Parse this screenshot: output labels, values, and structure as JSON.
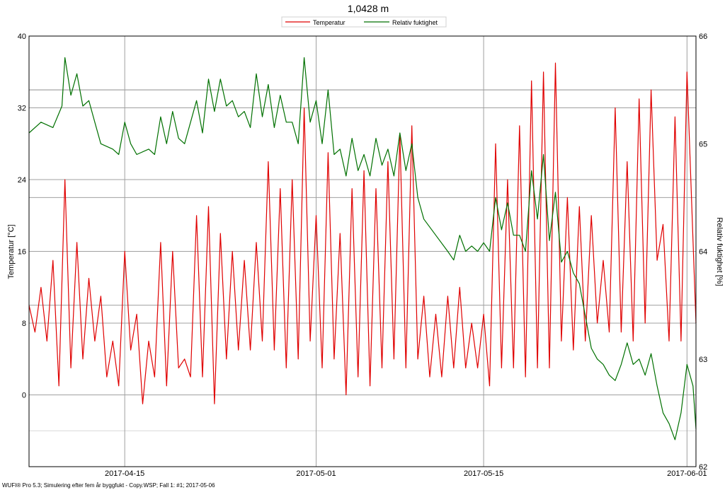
{
  "chart_data": {
    "type": "line",
    "title": "1,0428 m",
    "ylabel_left": "Temperatur [°C]",
    "ylabel_right": "Relativ fuktighet [%]",
    "ylim_left": [
      -8,
      40
    ],
    "yticks_left": [
      "40",
      "32",
      "24",
      "16",
      "8",
      "0"
    ],
    "ylim_right": [
      62,
      66
    ],
    "yticks_right": [
      "66",
      "65",
      "64",
      "63",
      "62"
    ],
    "xlim": [
      "2017-04-07",
      "2017-06-01T18:00"
    ],
    "xticks": [
      "2017-04-15",
      "2017-05-01",
      "2017-05-15",
      "2017-06-01"
    ],
    "grid": true,
    "legend": {
      "placement": "top-center",
      "entries": [
        "Temperatur",
        "Relativ fuktighet"
      ]
    },
    "footer": "WUFI® Pro 5.3; Simulering efter fem år  byggfukt - Copy.WSP; Fall 1: #1; 2017-05-06",
    "series": [
      {
        "name": "Temperatur",
        "axis": "left",
        "color": "#e00000",
        "points": [
          [
            "2017-04-07T00:00",
            10
          ],
          [
            "2017-04-07T12:00",
            7
          ],
          [
            "2017-04-08T00:00",
            12
          ],
          [
            "2017-04-08T12:00",
            6
          ],
          [
            "2017-04-09T00:00",
            15
          ],
          [
            "2017-04-09T12:00",
            1
          ],
          [
            "2017-04-10T00:00",
            24
          ],
          [
            "2017-04-10T12:00",
            3
          ],
          [
            "2017-04-11T00:00",
            17
          ],
          [
            "2017-04-11T12:00",
            4
          ],
          [
            "2017-04-12T00:00",
            13
          ],
          [
            "2017-04-12T12:00",
            6
          ],
          [
            "2017-04-13T00:00",
            11
          ],
          [
            "2017-04-13T12:00",
            2
          ],
          [
            "2017-04-14T00:00",
            6
          ],
          [
            "2017-04-14T12:00",
            1
          ],
          [
            "2017-04-15T00:00",
            16
          ],
          [
            "2017-04-15T12:00",
            5
          ],
          [
            "2017-04-16T00:00",
            9
          ],
          [
            "2017-04-16T12:00",
            -1
          ],
          [
            "2017-04-17T00:00",
            6
          ],
          [
            "2017-04-17T12:00",
            2
          ],
          [
            "2017-04-18T00:00",
            17
          ],
          [
            "2017-04-18T12:00",
            1
          ],
          [
            "2017-04-19T00:00",
            16
          ],
          [
            "2017-04-19T12:00",
            3
          ],
          [
            "2017-04-20T00:00",
            4
          ],
          [
            "2017-04-20T12:00",
            2
          ],
          [
            "2017-04-21T00:00",
            20
          ],
          [
            "2017-04-21T12:00",
            2
          ],
          [
            "2017-04-22T00:00",
            21
          ],
          [
            "2017-04-22T12:00",
            -1
          ],
          [
            "2017-04-23T00:00",
            18
          ],
          [
            "2017-04-23T12:00",
            4
          ],
          [
            "2017-04-24T00:00",
            16
          ],
          [
            "2017-04-24T12:00",
            5
          ],
          [
            "2017-04-25T00:00",
            15
          ],
          [
            "2017-04-25T12:00",
            5
          ],
          [
            "2017-04-26T00:00",
            17
          ],
          [
            "2017-04-26T12:00",
            6
          ],
          [
            "2017-04-27T00:00",
            26
          ],
          [
            "2017-04-27T12:00",
            5
          ],
          [
            "2017-04-28T00:00",
            23
          ],
          [
            "2017-04-28T12:00",
            3
          ],
          [
            "2017-04-29T00:00",
            24
          ],
          [
            "2017-04-29T12:00",
            4
          ],
          [
            "2017-04-30T00:00",
            32
          ],
          [
            "2017-04-30T12:00",
            6
          ],
          [
            "2017-05-01T00:00",
            20
          ],
          [
            "2017-05-01T12:00",
            3
          ],
          [
            "2017-05-02T00:00",
            27
          ],
          [
            "2017-05-02T12:00",
            4
          ],
          [
            "2017-05-03T00:00",
            18
          ],
          [
            "2017-05-03T12:00",
            0
          ],
          [
            "2017-05-04T00:00",
            23
          ],
          [
            "2017-05-04T12:00",
            2
          ],
          [
            "2017-05-05T00:00",
            25
          ],
          [
            "2017-05-05T12:00",
            1
          ],
          [
            "2017-05-06T00:00",
            23
          ],
          [
            "2017-05-06T12:00",
            3
          ],
          [
            "2017-05-07T00:00",
            26
          ],
          [
            "2017-05-07T12:00",
            4
          ],
          [
            "2017-05-08T00:00",
            29
          ],
          [
            "2017-05-08T12:00",
            3
          ],
          [
            "2017-05-09T00:00",
            30
          ],
          [
            "2017-05-09T12:00",
            4
          ],
          [
            "2017-05-10T00:00",
            11
          ],
          [
            "2017-05-10T12:00",
            2
          ],
          [
            "2017-05-11T00:00",
            9
          ],
          [
            "2017-05-11T12:00",
            2
          ],
          [
            "2017-05-12T00:00",
            11
          ],
          [
            "2017-05-12T12:00",
            3
          ],
          [
            "2017-05-13T00:00",
            12
          ],
          [
            "2017-05-13T12:00",
            3
          ],
          [
            "2017-05-14T00:00",
            8
          ],
          [
            "2017-05-14T12:00",
            3
          ],
          [
            "2017-05-15T00:00",
            9
          ],
          [
            "2017-05-15T12:00",
            1
          ],
          [
            "2017-05-16T00:00",
            28
          ],
          [
            "2017-05-16T12:00",
            3
          ],
          [
            "2017-05-17T00:00",
            24
          ],
          [
            "2017-05-17T12:00",
            3
          ],
          [
            "2017-05-18T00:00",
            30
          ],
          [
            "2017-05-18T12:00",
            2
          ],
          [
            "2017-05-19T00:00",
            35
          ],
          [
            "2017-05-19T12:00",
            3
          ],
          [
            "2017-05-20T00:00",
            36
          ],
          [
            "2017-05-20T12:00",
            3
          ],
          [
            "2017-05-21T00:00",
            37
          ],
          [
            "2017-05-21T12:00",
            6
          ],
          [
            "2017-05-22T00:00",
            22
          ],
          [
            "2017-05-22T12:00",
            5
          ],
          [
            "2017-05-23T00:00",
            21
          ],
          [
            "2017-05-23T12:00",
            6
          ],
          [
            "2017-05-24T00:00",
            20
          ],
          [
            "2017-05-24T12:00",
            8
          ],
          [
            "2017-05-25T00:00",
            15
          ],
          [
            "2017-05-25T12:00",
            7
          ],
          [
            "2017-05-26T00:00",
            32
          ],
          [
            "2017-05-26T12:00",
            7
          ],
          [
            "2017-05-27T00:00",
            26
          ],
          [
            "2017-05-27T12:00",
            6
          ],
          [
            "2017-05-28T00:00",
            33
          ],
          [
            "2017-05-28T12:00",
            8
          ],
          [
            "2017-05-29T00:00",
            34
          ],
          [
            "2017-05-29T12:00",
            15
          ],
          [
            "2017-05-30T00:00",
            19
          ],
          [
            "2017-05-30T12:00",
            6
          ],
          [
            "2017-05-31T00:00",
            31
          ],
          [
            "2017-05-31T12:00",
            6
          ],
          [
            "2017-06-01T00:00",
            36
          ],
          [
            "2017-06-01T18:00",
            8
          ]
        ]
      },
      {
        "name": "Relativ fuktighet",
        "axis": "right",
        "color": "#007000",
        "points": [
          [
            "2017-04-07T00:00",
            65.1
          ],
          [
            "2017-04-08T00:00",
            65.2
          ],
          [
            "2017-04-09T00:00",
            65.15
          ],
          [
            "2017-04-09T18:00",
            65.35
          ],
          [
            "2017-04-10T00:00",
            65.8
          ],
          [
            "2017-04-10T12:00",
            65.45
          ],
          [
            "2017-04-11T00:00",
            65.65
          ],
          [
            "2017-04-11T12:00",
            65.35
          ],
          [
            "2017-04-12T00:00",
            65.4
          ],
          [
            "2017-04-12T12:00",
            65.2
          ],
          [
            "2017-04-13T00:00",
            65.0
          ],
          [
            "2017-04-14T00:00",
            64.95
          ],
          [
            "2017-04-14T12:00",
            64.9
          ],
          [
            "2017-04-15T00:00",
            65.2
          ],
          [
            "2017-04-15T12:00",
            65.0
          ],
          [
            "2017-04-16T00:00",
            64.9
          ],
          [
            "2017-04-17T00:00",
            64.95
          ],
          [
            "2017-04-17T12:00",
            64.9
          ],
          [
            "2017-04-18T00:00",
            65.25
          ],
          [
            "2017-04-18T12:00",
            65.0
          ],
          [
            "2017-04-19T00:00",
            65.3
          ],
          [
            "2017-04-19T12:00",
            65.05
          ],
          [
            "2017-04-20T00:00",
            65.0
          ],
          [
            "2017-04-21T00:00",
            65.4
          ],
          [
            "2017-04-21T12:00",
            65.1
          ],
          [
            "2017-04-22T00:00",
            65.6
          ],
          [
            "2017-04-22T12:00",
            65.3
          ],
          [
            "2017-04-23T00:00",
            65.6
          ],
          [
            "2017-04-23T12:00",
            65.35
          ],
          [
            "2017-04-24T00:00",
            65.4
          ],
          [
            "2017-04-24T12:00",
            65.25
          ],
          [
            "2017-04-25T00:00",
            65.3
          ],
          [
            "2017-04-25T12:00",
            65.15
          ],
          [
            "2017-04-26T00:00",
            65.65
          ],
          [
            "2017-04-26T12:00",
            65.25
          ],
          [
            "2017-04-27T00:00",
            65.55
          ],
          [
            "2017-04-27T12:00",
            65.15
          ],
          [
            "2017-04-28T00:00",
            65.45
          ],
          [
            "2017-04-28T12:00",
            65.2
          ],
          [
            "2017-04-29T00:00",
            65.2
          ],
          [
            "2017-04-29T12:00",
            65.0
          ],
          [
            "2017-04-30T00:00",
            65.8
          ],
          [
            "2017-04-30T12:00",
            65.2
          ],
          [
            "2017-05-01T00:00",
            65.4
          ],
          [
            "2017-05-01T12:00",
            65.0
          ],
          [
            "2017-05-02T00:00",
            65.5
          ],
          [
            "2017-05-02T12:00",
            64.9
          ],
          [
            "2017-05-03T00:00",
            64.95
          ],
          [
            "2017-05-03T12:00",
            64.7
          ],
          [
            "2017-05-04T00:00",
            65.05
          ],
          [
            "2017-05-04T12:00",
            64.75
          ],
          [
            "2017-05-05T00:00",
            64.9
          ],
          [
            "2017-05-05T12:00",
            64.7
          ],
          [
            "2017-05-06T00:00",
            65.05
          ],
          [
            "2017-05-06T12:00",
            64.8
          ],
          [
            "2017-05-07T00:00",
            64.95
          ],
          [
            "2017-05-07T12:00",
            64.7
          ],
          [
            "2017-05-08T00:00",
            65.1
          ],
          [
            "2017-05-08T12:00",
            64.75
          ],
          [
            "2017-05-09T00:00",
            65.0
          ],
          [
            "2017-05-09T12:00",
            64.5
          ],
          [
            "2017-05-10T00:00",
            64.3
          ],
          [
            "2017-05-11T00:00",
            64.15
          ],
          [
            "2017-05-12T00:00",
            64.0
          ],
          [
            "2017-05-12T12:00",
            63.92
          ],
          [
            "2017-05-13T00:00",
            64.15
          ],
          [
            "2017-05-13T12:00",
            64.0
          ],
          [
            "2017-05-14T00:00",
            64.05
          ],
          [
            "2017-05-14T12:00",
            64.0
          ],
          [
            "2017-05-15T00:00",
            64.08
          ],
          [
            "2017-05-15T12:00",
            64.0
          ],
          [
            "2017-05-16T00:00",
            64.5
          ],
          [
            "2017-05-16T12:00",
            64.2
          ],
          [
            "2017-05-17T00:00",
            64.45
          ],
          [
            "2017-05-17T12:00",
            64.15
          ],
          [
            "2017-05-18T00:00",
            64.15
          ],
          [
            "2017-05-18T12:00",
            64.0
          ],
          [
            "2017-05-19T00:00",
            64.75
          ],
          [
            "2017-05-19T12:00",
            64.3
          ],
          [
            "2017-05-20T00:00",
            64.9
          ],
          [
            "2017-05-20T12:00",
            64.1
          ],
          [
            "2017-05-21T00:00",
            64.55
          ],
          [
            "2017-05-21T12:00",
            63.9
          ],
          [
            "2017-05-22T00:00",
            64.0
          ],
          [
            "2017-05-22T12:00",
            63.8
          ],
          [
            "2017-05-23T00:00",
            63.7
          ],
          [
            "2017-05-23T12:00",
            63.4
          ],
          [
            "2017-05-24T00:00",
            63.1
          ],
          [
            "2017-05-24T12:00",
            63.0
          ],
          [
            "2017-05-25T00:00",
            62.95
          ],
          [
            "2017-05-25T12:00",
            62.85
          ],
          [
            "2017-05-26T00:00",
            62.8
          ],
          [
            "2017-05-26T12:00",
            62.95
          ],
          [
            "2017-05-27T00:00",
            63.15
          ],
          [
            "2017-05-27T12:00",
            62.95
          ],
          [
            "2017-05-28T00:00",
            63.0
          ],
          [
            "2017-05-28T12:00",
            62.85
          ],
          [
            "2017-05-29T00:00",
            63.05
          ],
          [
            "2017-05-29T12:00",
            62.75
          ],
          [
            "2017-05-30T00:00",
            62.5
          ],
          [
            "2017-05-30T12:00",
            62.4
          ],
          [
            "2017-05-31T00:00",
            62.25
          ],
          [
            "2017-05-31T12:00",
            62.5
          ],
          [
            "2017-06-01T00:00",
            62.95
          ],
          [
            "2017-06-01T12:00",
            62.75
          ],
          [
            "2017-06-01T18:00",
            62.35
          ]
        ]
      }
    ]
  }
}
